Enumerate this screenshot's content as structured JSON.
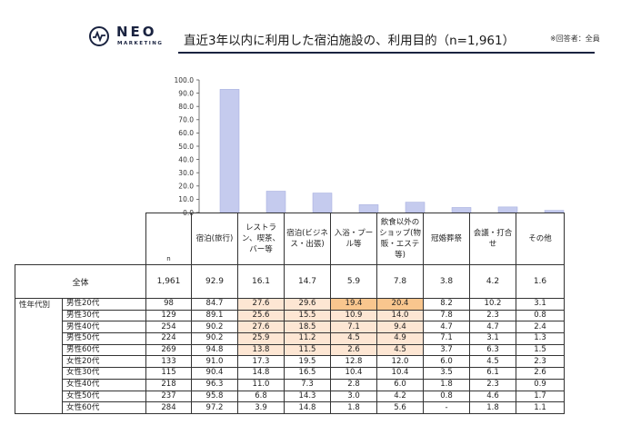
{
  "logo": {
    "word": "NEO",
    "sub": "MARKETING"
  },
  "title": "直近3年以内に利用した宿泊施設の、利用目的（n=1,961）",
  "title_note": "※回答者：全員",
  "colors": {
    "bar": "#c5cbee",
    "bar_stroke": "#9fa8dc",
    "highlight_light": "#fde6d3",
    "highlight_strong": "#f9c68e",
    "brand": "#1a2340"
  },
  "chart_data": {
    "type": "bar",
    "categories": [
      "宿泊(旅行)",
      "レストラン、喫茶、バー等",
      "宿泊(ビジネス・出張)",
      "入浴・プール等",
      "飲食以外のショップ(物販・エステ等)",
      "冠婚葬祭",
      "会議・打合せ",
      "その他"
    ],
    "values": [
      92.9,
      16.1,
      14.7,
      5.9,
      7.8,
      3.8,
      4.2,
      1.6
    ],
    "ylim": [
      0,
      100
    ],
    "yticks": [
      "0.0",
      "10.0",
      "20.0",
      "30.0",
      "40.0",
      "50.0",
      "60.0",
      "70.0",
      "80.0",
      "90.0",
      "100.0"
    ],
    "ytick_values": [
      0,
      10,
      20,
      30,
      40,
      50,
      60,
      70,
      80,
      90,
      100
    ]
  },
  "table": {
    "n_label": "n",
    "headers": [
      "宿泊(旅行)",
      "レストラン、喫茶、バー等",
      "宿泊(ビジネス・出張)",
      "入浴・プール等",
      "飲食以外のショップ(物販・エステ等)",
      "冠婚葬祭",
      "会議・打合せ",
      "その他"
    ],
    "total": {
      "label": "全体",
      "n": "1,961",
      "values": [
        "92.9",
        "16.1",
        "14.7",
        "5.9",
        "7.8",
        "3.8",
        "4.2",
        "1.6"
      ]
    },
    "group_label": "性年代別",
    "rows": [
      {
        "label": "男性20代",
        "n": "98",
        "values": [
          "84.7",
          "27.6",
          "29.6",
          "19.4",
          "20.4",
          "8.2",
          "10.2",
          "3.1"
        ],
        "hl": [
          0,
          1,
          1,
          2,
          2,
          0,
          0,
          0
        ]
      },
      {
        "label": "男性30代",
        "n": "129",
        "values": [
          "89.1",
          "25.6",
          "15.5",
          "10.9",
          "14.0",
          "7.8",
          "2.3",
          "0.8"
        ],
        "hl": [
          0,
          1,
          1,
          1,
          1,
          0,
          0,
          0
        ]
      },
      {
        "label": "男性40代",
        "n": "254",
        "values": [
          "90.2",
          "27.6",
          "18.5",
          "7.1",
          "9.4",
          "4.7",
          "4.7",
          "2.4"
        ],
        "hl": [
          0,
          1,
          1,
          1,
          1,
          0,
          0,
          0
        ]
      },
      {
        "label": "男性50代",
        "n": "224",
        "values": [
          "90.2",
          "25.9",
          "11.2",
          "4.5",
          "4.9",
          "7.1",
          "3.1",
          "1.3"
        ],
        "hl": [
          0,
          1,
          1,
          1,
          1,
          0,
          0,
          0
        ]
      },
      {
        "label": "男性60代",
        "n": "269",
        "values": [
          "94.8",
          "13.8",
          "11.5",
          "2.6",
          "4.5",
          "3.7",
          "6.3",
          "1.5"
        ],
        "hl": [
          0,
          1,
          1,
          1,
          1,
          0,
          0,
          0
        ]
      },
      {
        "label": "女性20代",
        "n": "133",
        "values": [
          "91.0",
          "17.3",
          "19.5",
          "12.8",
          "12.0",
          "6.0",
          "4.5",
          "2.3"
        ],
        "hl": [
          0,
          0,
          0,
          0,
          0,
          0,
          0,
          0
        ]
      },
      {
        "label": "女性30代",
        "n": "115",
        "values": [
          "90.4",
          "14.8",
          "16.5",
          "10.4",
          "10.4",
          "3.5",
          "6.1",
          "2.6"
        ],
        "hl": [
          0,
          0,
          0,
          0,
          0,
          0,
          0,
          0
        ]
      },
      {
        "label": "女性40代",
        "n": "218",
        "values": [
          "96.3",
          "11.0",
          "7.3",
          "2.8",
          "6.0",
          "1.8",
          "2.3",
          "0.9"
        ],
        "hl": [
          0,
          0,
          0,
          0,
          0,
          0,
          0,
          0
        ]
      },
      {
        "label": "女性50代",
        "n": "237",
        "values": [
          "95.8",
          "6.8",
          "14.3",
          "3.0",
          "4.2",
          "0.8",
          "4.6",
          "1.7"
        ],
        "hl": [
          0,
          0,
          0,
          0,
          0,
          0,
          0,
          0
        ]
      },
      {
        "label": "女性60代",
        "n": "284",
        "values": [
          "97.2",
          "3.9",
          "14.8",
          "1.8",
          "5.6",
          "-",
          "1.8",
          "1.1"
        ],
        "hl": [
          0,
          0,
          0,
          0,
          0,
          0,
          0,
          0
        ]
      }
    ]
  }
}
